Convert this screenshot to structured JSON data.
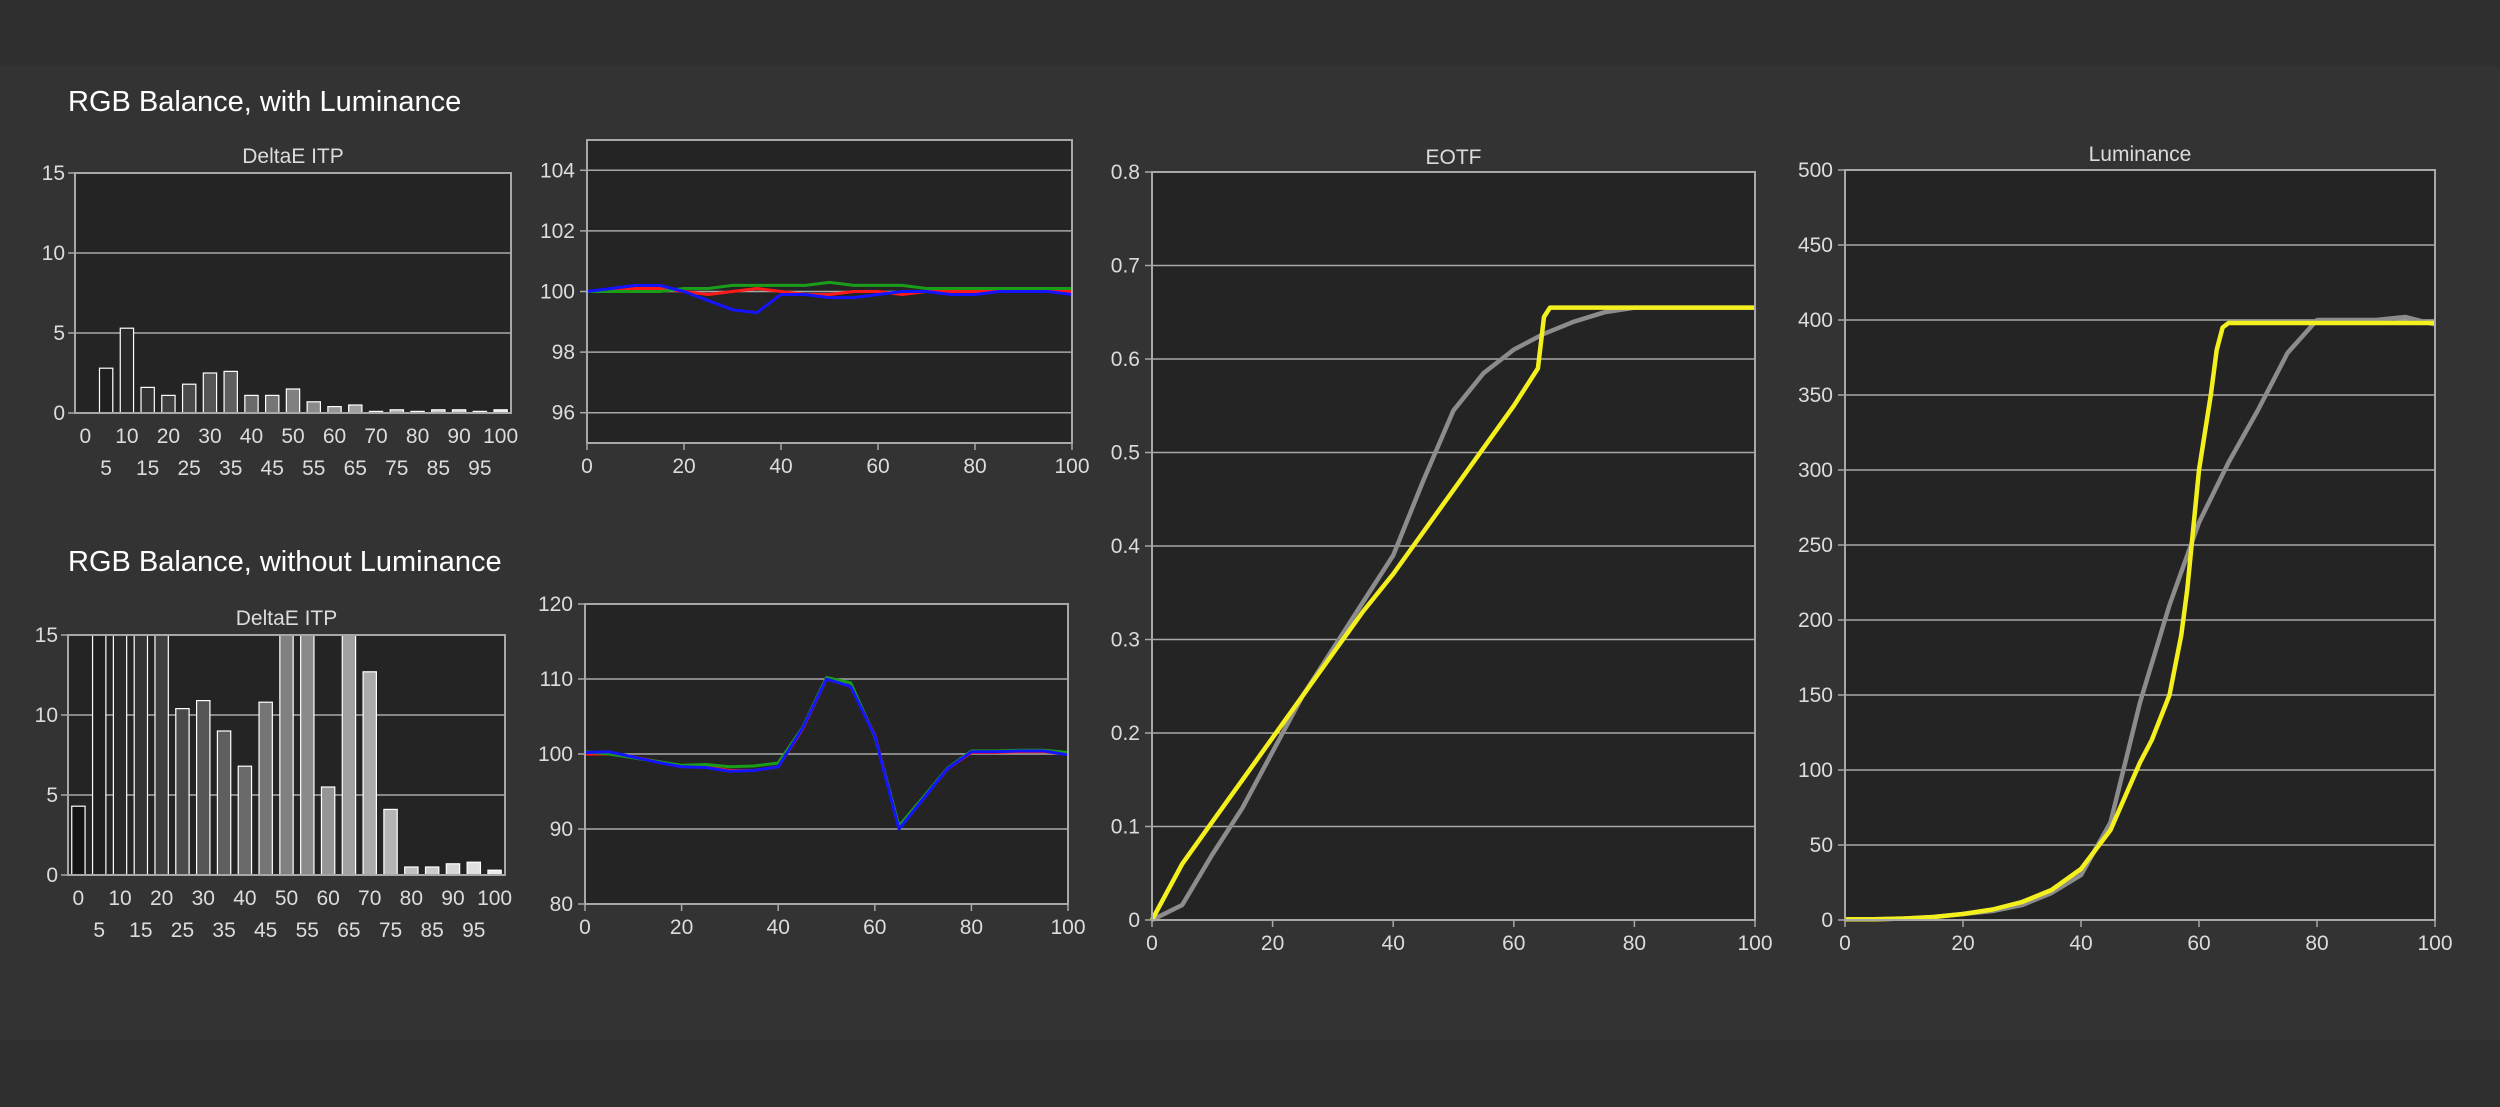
{
  "headings": {
    "top": "RGB Balance, with Luminance",
    "bottom": "RGB Balance, without Luminance"
  },
  "colors": {
    "red": "#ff1a1a",
    "green": "#1a9e1a",
    "blue": "#1414ff",
    "yellow": "#f4f01e",
    "gray": "#8c8c8c",
    "plot_bg": "#242424",
    "grid": "#a8a8a8"
  },
  "chart_data": [
    {
      "id": "delta-top",
      "type": "bar",
      "title": "DeltaE ITP",
      "ylim": [
        0,
        15
      ],
      "yticks": [
        0,
        5,
        10,
        15
      ],
      "categories": [
        0,
        5,
        10,
        15,
        20,
        25,
        30,
        35,
        40,
        45,
        50,
        55,
        60,
        65,
        70,
        75,
        80,
        85,
        90,
        95,
        100
      ],
      "xtick_labels_upper": [
        "0",
        "10",
        "20",
        "30",
        "40",
        "50",
        "60",
        "70",
        "80",
        "90",
        "100"
      ],
      "xtick_labels_lower": [
        "5",
        "15",
        "25",
        "35",
        "45",
        "55",
        "65",
        "75",
        "85",
        "95"
      ],
      "values": [
        0,
        2.8,
        5.3,
        1.6,
        1.1,
        1.8,
        2.5,
        2.6,
        1.1,
        1.1,
        1.5,
        0.7,
        0.4,
        0.5,
        0.1,
        0.2,
        0.1,
        0.2,
        0.2,
        0.1,
        0.2
      ]
    },
    {
      "id": "rgb-top",
      "type": "line",
      "title": "",
      "xlim": [
        0,
        100
      ],
      "ylim": [
        95,
        105
      ],
      "xticks": [
        0,
        20,
        40,
        60,
        80,
        100
      ],
      "yticks": [
        96,
        98,
        100,
        102,
        104
      ],
      "series": [
        {
          "color_key": "red",
          "x": [
            0,
            5,
            10,
            15,
            20,
            25,
            30,
            35,
            40,
            45,
            50,
            55,
            60,
            65,
            70,
            75,
            80,
            85,
            90,
            95,
            100
          ],
          "y": [
            100,
            100,
            100.1,
            100.1,
            100,
            99.9,
            100,
            100.1,
            100,
            99.9,
            99.9,
            100,
            100,
            99.9,
            100,
            100,
            100,
            100,
            100,
            100,
            100
          ]
        },
        {
          "color_key": "green",
          "x": [
            0,
            5,
            10,
            15,
            20,
            25,
            30,
            35,
            40,
            45,
            50,
            55,
            60,
            65,
            70,
            75,
            80,
            85,
            90,
            95,
            100
          ],
          "y": [
            100,
            100,
            100,
            100,
            100.1,
            100.1,
            100.2,
            100.2,
            100.2,
            100.2,
            100.3,
            100.2,
            100.2,
            100.2,
            100.1,
            100.1,
            100.1,
            100.1,
            100.1,
            100.1,
            100.1
          ]
        },
        {
          "color_key": "blue",
          "x": [
            0,
            5,
            10,
            15,
            20,
            25,
            30,
            35,
            40,
            45,
            50,
            55,
            60,
            65,
            70,
            75,
            80,
            85,
            90,
            95,
            100
          ],
          "y": [
            100,
            100.1,
            100.2,
            100.2,
            100,
            99.7,
            99.4,
            99.3,
            99.9,
            99.9,
            99.8,
            99.8,
            99.9,
            100,
            100,
            99.9,
            99.9,
            100,
            100,
            100,
            99.9
          ]
        }
      ]
    },
    {
      "id": "eotf",
      "type": "line",
      "title": "EOTF",
      "xlim": [
        0,
        100
      ],
      "ylim": [
        0,
        0.8
      ],
      "xticks": [
        0,
        20,
        40,
        60,
        80,
        100
      ],
      "yticks": [
        0,
        0.1,
        0.2,
        0.3,
        0.4,
        0.5,
        0.6,
        0.7,
        0.8
      ],
      "ytick_labels": [
        "0",
        "0.1",
        "0.2",
        "0.3",
        "0.4",
        "0.5",
        "0.6",
        "0.7",
        "0.8"
      ],
      "series": [
        {
          "color_key": "gray",
          "x": [
            0,
            5,
            10,
            15,
            20,
            25,
            30,
            35,
            40,
            45,
            50,
            55,
            60,
            65,
            70,
            75,
            80,
            85,
            90,
            95,
            100
          ],
          "y": [
            0,
            0.016,
            0.07,
            0.12,
            0.18,
            0.24,
            0.29,
            0.34,
            0.39,
            0.47,
            0.545,
            0.585,
            0.61,
            0.627,
            0.64,
            0.65,
            0.655,
            0.655,
            0.655,
            0.655,
            0.655
          ]
        },
        {
          "color_key": "yellow",
          "x": [
            0,
            5,
            10,
            15,
            20,
            25,
            30,
            35,
            40,
            45,
            50,
            55,
            60,
            64,
            65,
            66,
            70,
            80,
            90,
            100
          ],
          "y": [
            0,
            0.06,
            0.105,
            0.15,
            0.195,
            0.24,
            0.285,
            0.33,
            0.37,
            0.415,
            0.46,
            0.505,
            0.55,
            0.59,
            0.645,
            0.655,
            0.655,
            0.655,
            0.655,
            0.655
          ]
        }
      ]
    },
    {
      "id": "luminance",
      "type": "line",
      "title": "Luminance",
      "xlim": [
        0,
        100
      ],
      "ylim": [
        0,
        500
      ],
      "xticks": [
        0,
        20,
        40,
        60,
        80,
        100
      ],
      "yticks": [
        0,
        50,
        100,
        150,
        200,
        250,
        300,
        350,
        400,
        450,
        500
      ],
      "series": [
        {
          "color_key": "gray",
          "x": [
            0,
            5,
            10,
            15,
            20,
            25,
            30,
            35,
            40,
            45,
            50,
            55,
            60,
            65,
            70,
            75,
            80,
            85,
            90,
            95,
            100
          ],
          "y": [
            0.5,
            0.5,
            1,
            2,
            4,
            6,
            10,
            18,
            30,
            65,
            145,
            210,
            265,
            305,
            340,
            378,
            400,
            400,
            400,
            402,
            397
          ]
        },
        {
          "color_key": "yellow",
          "x": [
            0,
            5,
            10,
            15,
            20,
            25,
            30,
            35,
            40,
            45,
            50,
            52,
            55,
            57,
            58,
            60,
            62,
            63,
            64,
            65,
            66,
            70,
            80,
            90,
            100
          ],
          "y": [
            0.5,
            0.5,
            1,
            2,
            4,
            7,
            12,
            20,
            34,
            60,
            105,
            120,
            150,
            190,
            220,
            300,
            350,
            380,
            395,
            398,
            398,
            398,
            398,
            398,
            398
          ]
        }
      ]
    },
    {
      "id": "delta-bottom",
      "type": "bar",
      "title": "DeltaE ITP",
      "ylim": [
        0,
        15
      ],
      "yticks": [
        0,
        5,
        10,
        15
      ],
      "categories": [
        0,
        5,
        10,
        15,
        20,
        25,
        30,
        35,
        40,
        45,
        50,
        55,
        60,
        65,
        70,
        75,
        80,
        85,
        90,
        95,
        100
      ],
      "xtick_labels_upper": [
        "0",
        "10",
        "20",
        "30",
        "40",
        "50",
        "60",
        "70",
        "80",
        "90",
        "100"
      ],
      "xtick_labels_lower": [
        "5",
        "15",
        "25",
        "35",
        "45",
        "55",
        "65",
        "75",
        "85",
        "95"
      ],
      "values": [
        4.3,
        15,
        15,
        15,
        15,
        10.4,
        10.9,
        9.0,
        6.8,
        10.8,
        15,
        15,
        5.5,
        15,
        12.7,
        4.1,
        0.5,
        0.5,
        0.7,
        0.8,
        0.3
      ]
    },
    {
      "id": "rgb-bottom",
      "type": "line",
      "title": "",
      "xlim": [
        0,
        100
      ],
      "ylim": [
        80,
        120
      ],
      "xticks": [
        0,
        20,
        40,
        60,
        80,
        100
      ],
      "yticks": [
        80,
        90,
        100,
        110,
        120
      ],
      "series": [
        {
          "color_key": "red",
          "x": [
            0,
            5,
            10,
            15,
            20,
            25,
            30,
            35,
            40,
            45,
            50,
            55,
            60,
            65,
            70,
            75,
            80,
            85,
            90,
            95,
            100
          ],
          "y": [
            100,
            100,
            99.6,
            99,
            98.3,
            98.3,
            97.8,
            97.8,
            98.3,
            103.3,
            110,
            109,
            102.5,
            90.2,
            94,
            98,
            100.2,
            100.2,
            100.3,
            100.3,
            100
          ]
        },
        {
          "color_key": "green",
          "x": [
            0,
            5,
            10,
            15,
            20,
            25,
            30,
            35,
            40,
            45,
            50,
            55,
            60,
            65,
            70,
            75,
            80,
            85,
            90,
            95,
            100
          ],
          "y": [
            100.3,
            100,
            99.5,
            99,
            98.5,
            98.6,
            98.3,
            98.4,
            98.8,
            103.5,
            110.2,
            109.5,
            102.3,
            90.4,
            94.2,
            98.1,
            100.4,
            100.4,
            100.5,
            100.5,
            100.2
          ]
        },
        {
          "color_key": "blue",
          "x": [
            0,
            5,
            10,
            15,
            20,
            25,
            30,
            35,
            40,
            45,
            50,
            55,
            60,
            65,
            70,
            75,
            80,
            85,
            90,
            95,
            100
          ],
          "y": [
            100.2,
            100.3,
            99.6,
            98.9,
            98.3,
            98.2,
            97.7,
            97.8,
            98.3,
            103.4,
            110,
            109,
            102.4,
            90,
            94,
            98,
            100.3,
            100.3,
            100.4,
            100.4,
            99.9
          ]
        }
      ]
    }
  ]
}
